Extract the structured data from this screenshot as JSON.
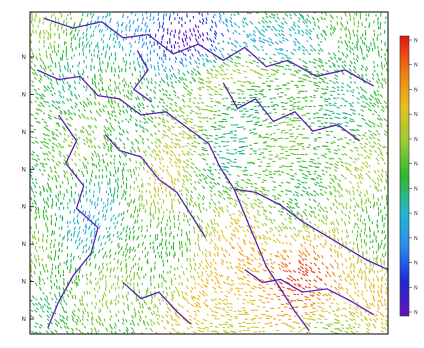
{
  "map": {
    "type": "field-map",
    "colormap": {
      "name": "rainbow",
      "stops": [
        "#6a10c0",
        "#1a2ad8",
        "#2f8cf0",
        "#22b8c8",
        "#2eb82e",
        "#9acd32",
        "#e8c020",
        "#f07a10",
        "#e41212"
      ],
      "orientation": "vertical",
      "high_at": "top"
    },
    "y_ticks": [
      "N",
      "N",
      "N",
      "N",
      "N",
      "N",
      "N",
      "N"
    ],
    "colorbar_ticks": [
      "N",
      "N",
      "N",
      "N",
      "N",
      "N",
      "N",
      "N",
      "N",
      "N",
      "N",
      "N"
    ],
    "frame_color": "#000000",
    "boundary_color": "#5a20b0",
    "background": "#ffffff"
  }
}
